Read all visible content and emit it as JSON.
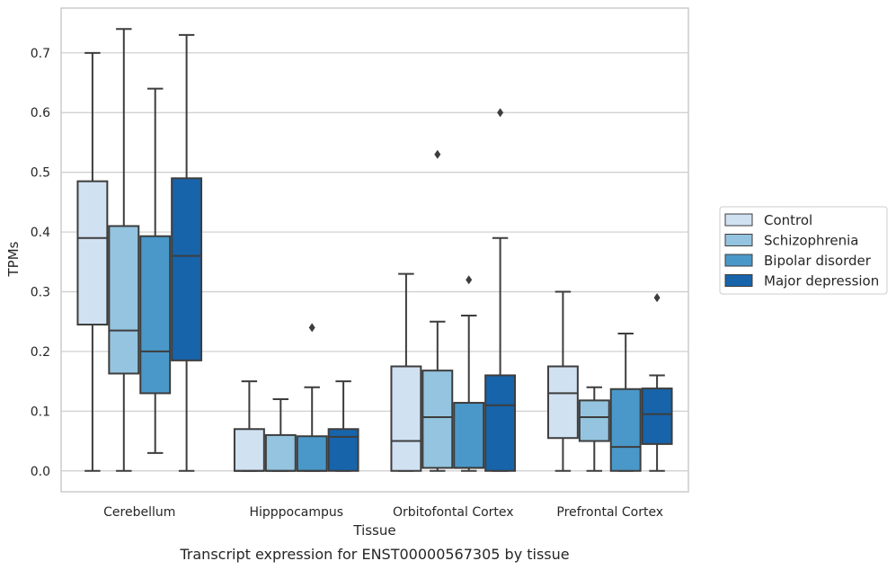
{
  "caption": "Transcript expression for ENST00000567305 by tissue",
  "chart_data": {
    "type": "boxplot",
    "xlabel": "Tissue",
    "ylabel": "TPMs",
    "ylim": [
      -0.035,
      0.775
    ],
    "yticks": [
      0.0,
      0.1,
      0.2,
      0.3,
      0.4,
      0.5,
      0.6,
      0.7
    ],
    "ytick_labels": [
      "0.0",
      "0.1",
      "0.2",
      "0.3",
      "0.4",
      "0.5",
      "0.6",
      "0.7"
    ],
    "grid": "horizontal",
    "legend_position": "right",
    "categories": [
      "Cerebellum",
      "Hipppocampus",
      "Orbitofontal Cortex",
      "Prefrontal Cortex"
    ],
    "series": [
      {
        "name": "Control",
        "color": "#d0e1f2",
        "boxes": [
          {
            "whislo": 0.0,
            "q1": 0.245,
            "med": 0.39,
            "q3": 0.485,
            "whishi": 0.7,
            "fliers": []
          },
          {
            "whislo": 0.0,
            "q1": 0.0,
            "med": 0.0,
            "q3": 0.07,
            "whishi": 0.15,
            "fliers": []
          },
          {
            "whislo": 0.0,
            "q1": 0.0,
            "med": 0.05,
            "q3": 0.175,
            "whishi": 0.33,
            "fliers": []
          },
          {
            "whislo": 0.0,
            "q1": 0.055,
            "med": 0.13,
            "q3": 0.175,
            "whishi": 0.3,
            "fliers": []
          }
        ]
      },
      {
        "name": "Schizophrenia",
        "color": "#94c4df",
        "boxes": [
          {
            "whislo": 0.0,
            "q1": 0.163,
            "med": 0.235,
            "q3": 0.41,
            "whishi": 0.74,
            "fliers": []
          },
          {
            "whislo": 0.0,
            "q1": 0.0,
            "med": 0.0,
            "q3": 0.06,
            "whishi": 0.12,
            "fliers": []
          },
          {
            "whislo": 0.0,
            "q1": 0.005,
            "med": 0.09,
            "q3": 0.168,
            "whishi": 0.25,
            "fliers": [
              0.53
            ]
          },
          {
            "whislo": 0.0,
            "q1": 0.05,
            "med": 0.09,
            "q3": 0.118,
            "whishi": 0.14,
            "fliers": []
          }
        ]
      },
      {
        "name": "Bipolar disorder",
        "color": "#4a98c9",
        "boxes": [
          {
            "whislo": 0.03,
            "q1": 0.13,
            "med": 0.2,
            "q3": 0.393,
            "whishi": 0.64,
            "fliers": []
          },
          {
            "whislo": 0.0,
            "q1": 0.0,
            "med": 0.0,
            "q3": 0.058,
            "whishi": 0.14,
            "fliers": [
              0.24
            ]
          },
          {
            "whislo": 0.0,
            "q1": 0.005,
            "med": 0.005,
            "q3": 0.114,
            "whishi": 0.26,
            "fliers": [
              0.32
            ]
          },
          {
            "whislo": 0.0,
            "q1": 0.0,
            "med": 0.04,
            "q3": 0.137,
            "whishi": 0.23,
            "fliers": []
          }
        ]
      },
      {
        "name": "Major depression",
        "color": "#1764ab",
        "boxes": [
          {
            "whislo": 0.0,
            "q1": 0.185,
            "med": 0.36,
            "q3": 0.49,
            "whishi": 0.73,
            "fliers": []
          },
          {
            "whislo": 0.0,
            "q1": 0.0,
            "med": 0.057,
            "q3": 0.07,
            "whishi": 0.15,
            "fliers": []
          },
          {
            "whislo": 0.0,
            "q1": 0.0,
            "med": 0.11,
            "q3": 0.16,
            "whishi": 0.39,
            "fliers": [
              0.6
            ]
          },
          {
            "whislo": 0.0,
            "q1": 0.045,
            "med": 0.095,
            "q3": 0.138,
            "whishi": 0.16,
            "fliers": [
              0.29
            ]
          }
        ]
      }
    ]
  }
}
